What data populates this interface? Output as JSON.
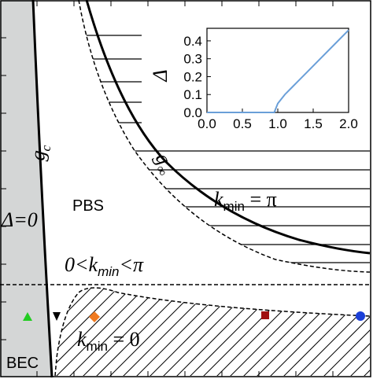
{
  "diagram": {
    "labels": {
      "gc": [
        "g",
        "c"
      ],
      "ginf": [
        "g",
        "∞"
      ],
      "kpi": [
        "k",
        "min",
        " = π"
      ],
      "pbs": "PBS",
      "delta0": "Δ=0",
      "kmid": [
        "0<k",
        "min",
        "<π"
      ],
      "k0": [
        "k",
        "min",
        " = 0"
      ],
      "bec": "BEC"
    }
  },
  "chart_data": {
    "type": "line",
    "ylabel": "Δ",
    "x": [
      0,
      0.5,
      0.95,
      1.0,
      1.1,
      1.2,
      1.4,
      1.6,
      1.8,
      2.0
    ],
    "values": [
      0,
      0,
      0,
      0.05,
      0.1,
      0.14,
      0.22,
      0.3,
      0.38,
      0.46
    ],
    "color": "#6a9fd8",
    "xlim": [
      0,
      2.0
    ],
    "ylim": [
      0,
      0.47
    ],
    "xticks": [
      {
        "value": 0,
        "label": "0.0"
      },
      {
        "value": 0.5,
        "label": "0.5"
      },
      {
        "value": 1.0,
        "label": "1.0"
      },
      {
        "value": 1.5,
        "label": "1.5"
      },
      {
        "value": 2.0,
        "label": "2.0"
      }
    ],
    "yticks": [
      {
        "value": 0,
        "label": "0.0"
      },
      {
        "value": 0.1,
        "label": "0.1"
      },
      {
        "value": 0.2,
        "label": "0.2"
      },
      {
        "value": 0.3,
        "label": "0.3"
      },
      {
        "value": 0.4,
        "label": "0.4"
      }
    ]
  }
}
